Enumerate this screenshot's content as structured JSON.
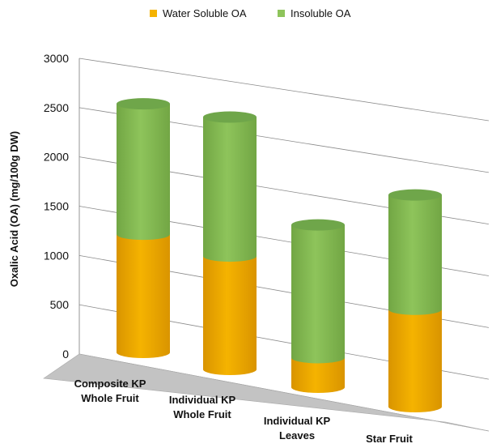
{
  "chart_data": {
    "type": "bar",
    "stacked": true,
    "style": "3d-cylinder",
    "categories": [
      [
        "Composite KP",
        "Whole Fruit"
      ],
      [
        "Individual KP",
        "Whole Fruit"
      ],
      [
        "Individual KP",
        "Leaves"
      ],
      [
        "Star Fruit"
      ]
    ],
    "series": [
      {
        "name": "Water Soluble OA",
        "values": [
          1250,
          1150,
          290,
          920
        ],
        "color": "#f5b300",
        "top": "#ffd24d",
        "side": "#d99400"
      },
      {
        "name": "Insoluble OA",
        "values": [
          1380,
          1410,
          1300,
          1080
        ],
        "color": "#8ec45b",
        "top": "#6fa64a",
        "side": "#72a644"
      }
    ],
    "ylabel": "Oxalic Acid (OA) (mg/100g DW)",
    "ylim": [
      0,
      3000
    ],
    "yticks": [
      0,
      500,
      1000,
      1500,
      2000,
      2500,
      3000
    ],
    "legend_position": "top",
    "grid": true,
    "floor_color": "#c3c3c3"
  }
}
